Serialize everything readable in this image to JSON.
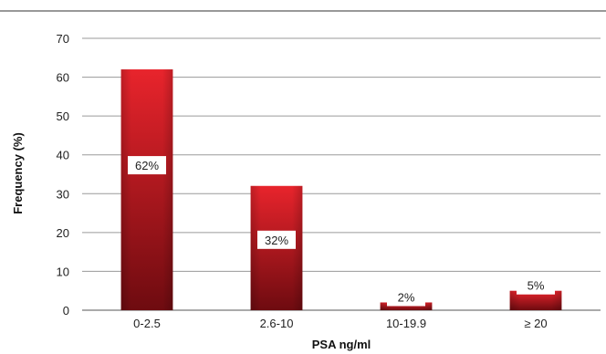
{
  "chart_data": {
    "type": "bar",
    "categories": [
      "0-2.5",
      "2.6-10",
      "10-19.9",
      "≥ 20"
    ],
    "values": [
      62,
      32,
      2,
      5
    ],
    "data_labels": [
      "62%",
      "32%",
      "2%",
      "5%"
    ],
    "title": "",
    "xlabel": "PSA ng/ml",
    "ylabel": "Frequency (%)",
    "ylim": [
      0,
      70
    ],
    "yticks": [
      "0",
      "10",
      "20",
      "30",
      "40",
      "50",
      "60",
      "70"
    ],
    "grid": true,
    "legend": "none",
    "colors": {
      "bar_top": "#e8242c",
      "bar_bottom": "#6e0b10",
      "gridline": "#9a9a9a",
      "top_rule": "#333333"
    }
  }
}
